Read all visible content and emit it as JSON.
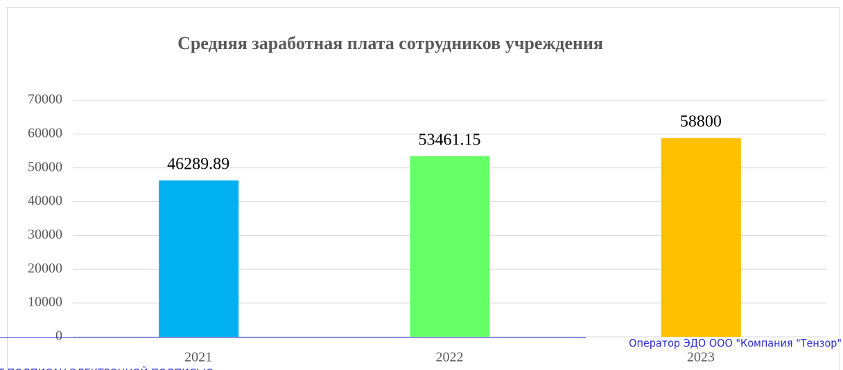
{
  "chart_data": {
    "type": "bar",
    "title": "Средняя заработная плата сотрудников учреждения",
    "categories": [
      "2021",
      "2022",
      "2023"
    ],
    "values": [
      46289.89,
      53461.15,
      58800
    ],
    "colors": [
      "#00b0f0",
      "#66ff66",
      "#ffc000"
    ],
    "ylim": [
      0,
      70000
    ],
    "yticks": [
      0,
      10000,
      20000,
      30000,
      40000,
      50000,
      60000,
      70000
    ],
    "grid": true
  },
  "watermark": {
    "operator": "Оператор ЭДО ООО \"Компания \"Тензор\"",
    "stamp": "Т ПОДПИСАН ЭЛЕКТРОННОЙ ПОДПИСЬЮ"
  }
}
